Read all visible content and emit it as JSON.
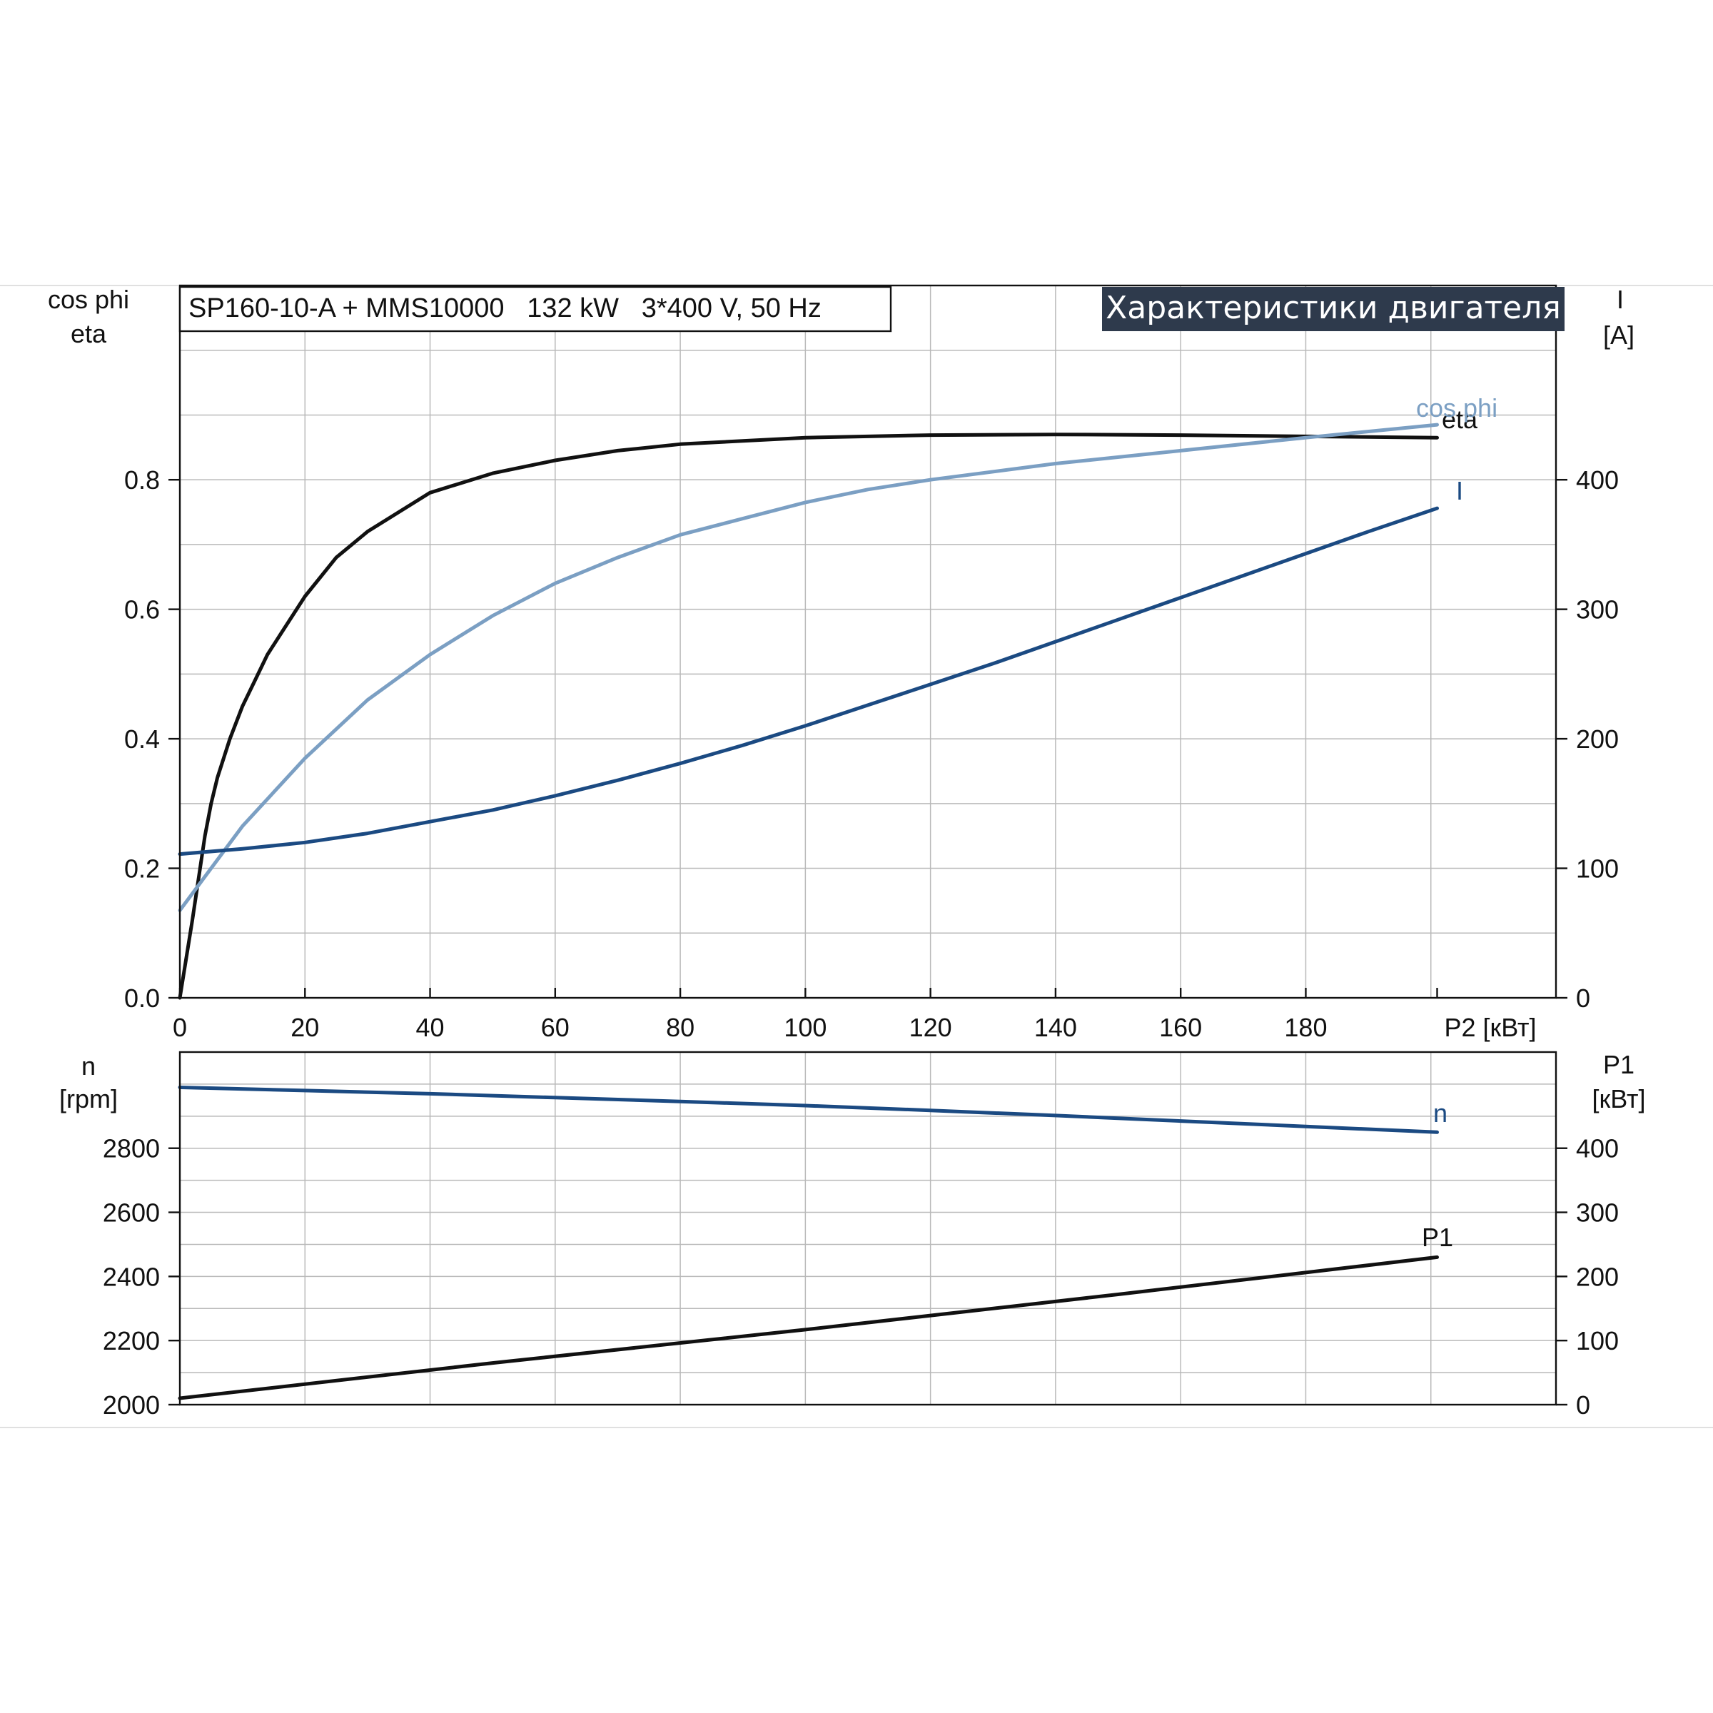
{
  "header": {
    "model": "SP160-10-A + MMS10000   132 kW   3*400 V, 50 Hz",
    "title": "Характеристики двигателя"
  },
  "colors": {
    "eta": "#111111",
    "cos_phi": "#7b9fc3",
    "current": "#1b4a82",
    "speed": "#1b4a82",
    "p1": "#111111",
    "title_bg": "#2e3a4c"
  },
  "chart_data": [
    {
      "type": "line",
      "x_label": "P2 [кВт]",
      "x_ticks": [
        "0",
        "20",
        "40",
        "60",
        "80",
        "100",
        "120",
        "140",
        "160",
        "180"
      ],
      "xlim": [
        0,
        220
      ],
      "y_left_label_1": "cos phi",
      "y_left_label_2": "eta",
      "y_left_ticks": [
        "0.0",
        "0.2",
        "0.4",
        "0.6",
        "0.8"
      ],
      "ylim_left": [
        0,
        1.1
      ],
      "y_right_label_1": "I",
      "y_right_label_2": "[A]",
      "y_right_ticks": [
        "0",
        "100",
        "200",
        "300",
        "400"
      ],
      "ylim_right": [
        0,
        550
      ],
      "grid": true,
      "series": [
        {
          "name": "eta",
          "axis": "left",
          "label": "eta",
          "x": [
            0,
            2,
            4,
            5,
            6,
            8,
            10,
            12,
            14,
            16,
            20,
            25,
            30,
            40,
            50,
            60,
            70,
            80,
            100,
            120,
            140,
            160,
            180,
            201
          ],
          "y": [
            0,
            0.12,
            0.25,
            0.3,
            0.34,
            0.4,
            0.45,
            0.49,
            0.53,
            0.56,
            0.62,
            0.68,
            0.72,
            0.78,
            0.81,
            0.83,
            0.845,
            0.855,
            0.865,
            0.869,
            0.87,
            0.869,
            0.867,
            0.865
          ]
        },
        {
          "name": "cos phi",
          "axis": "left",
          "label": "cos phi",
          "x": [
            0,
            5,
            10,
            20,
            30,
            40,
            50,
            60,
            70,
            80,
            90,
            100,
            110,
            120,
            140,
            160,
            180,
            201
          ],
          "y": [
            0.135,
            0.2,
            0.265,
            0.37,
            0.46,
            0.53,
            0.59,
            0.64,
            0.68,
            0.715,
            0.74,
            0.765,
            0.785,
            0.8,
            0.825,
            0.845,
            0.865,
            0.885
          ]
        },
        {
          "name": "I",
          "axis": "right",
          "label": "I",
          "x": [
            0,
            10,
            20,
            30,
            40,
            50,
            60,
            70,
            80,
            90,
            100,
            110,
            120,
            130,
            140,
            150,
            160,
            170,
            180,
            190,
            201
          ],
          "y": [
            111,
            115,
            120,
            127,
            136,
            145,
            156,
            168,
            181,
            195,
            210,
            226,
            242,
            258,
            275,
            292,
            309,
            326,
            343,
            360,
            378
          ]
        }
      ]
    },
    {
      "type": "line",
      "x_label": "",
      "xlim": [
        0,
        220
      ],
      "y_left_label_1": "n",
      "y_left_label_2": "[rpm]",
      "y_left_ticks": [
        "2000",
        "2200",
        "2400",
        "2600",
        "2800"
      ],
      "ylim_left": [
        2000,
        3100
      ],
      "y_right_label_1": "P1",
      "y_right_label_2": "[кВт]",
      "y_right_ticks": [
        "0",
        "100",
        "200",
        "300",
        "400"
      ],
      "ylim_right": [
        0,
        550
      ],
      "grid": true,
      "series": [
        {
          "name": "n",
          "axis": "left",
          "label": "n",
          "x": [
            0,
            20,
            40,
            60,
            80,
            100,
            120,
            140,
            160,
            180,
            201
          ],
          "y": [
            2990,
            2980,
            2970,
            2958,
            2946,
            2933,
            2918,
            2902,
            2885,
            2868,
            2850
          ]
        },
        {
          "name": "P1",
          "axis": "right",
          "label": "P1",
          "x": [
            0,
            50,
            100,
            150,
            201
          ],
          "y": [
            10,
            65,
            117,
            172,
            230
          ]
        }
      ]
    }
  ]
}
